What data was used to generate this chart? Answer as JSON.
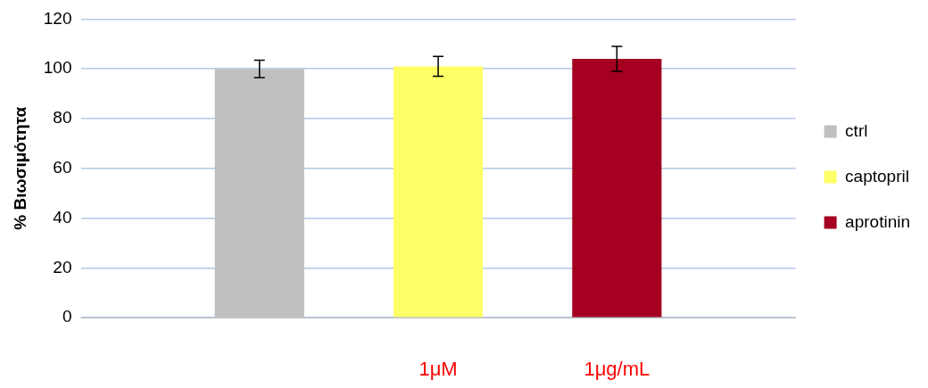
{
  "chart_data": {
    "type": "bar",
    "ylabel": "% Βιωσιμότητα",
    "categories": [
      null
    ],
    "series": [
      {
        "name": "ctrl",
        "color": "#bfbfbf",
        "values": [
          100
        ],
        "errors": [
          3.5
        ]
      },
      {
        "name": "captopril",
        "color": "#ffff66",
        "values": [
          101
        ],
        "errors": [
          4
        ]
      },
      {
        "name": "aprotinin",
        "color": "#a50021",
        "values": [
          104
        ],
        "errors": [
          5
        ]
      }
    ],
    "ylim": [
      0,
      120
    ],
    "yticks": [
      0,
      20,
      40,
      60,
      80,
      100,
      120
    ],
    "grid": "y",
    "legend": "right",
    "annotations": [
      "1μM",
      "1μg/mL"
    ]
  }
}
